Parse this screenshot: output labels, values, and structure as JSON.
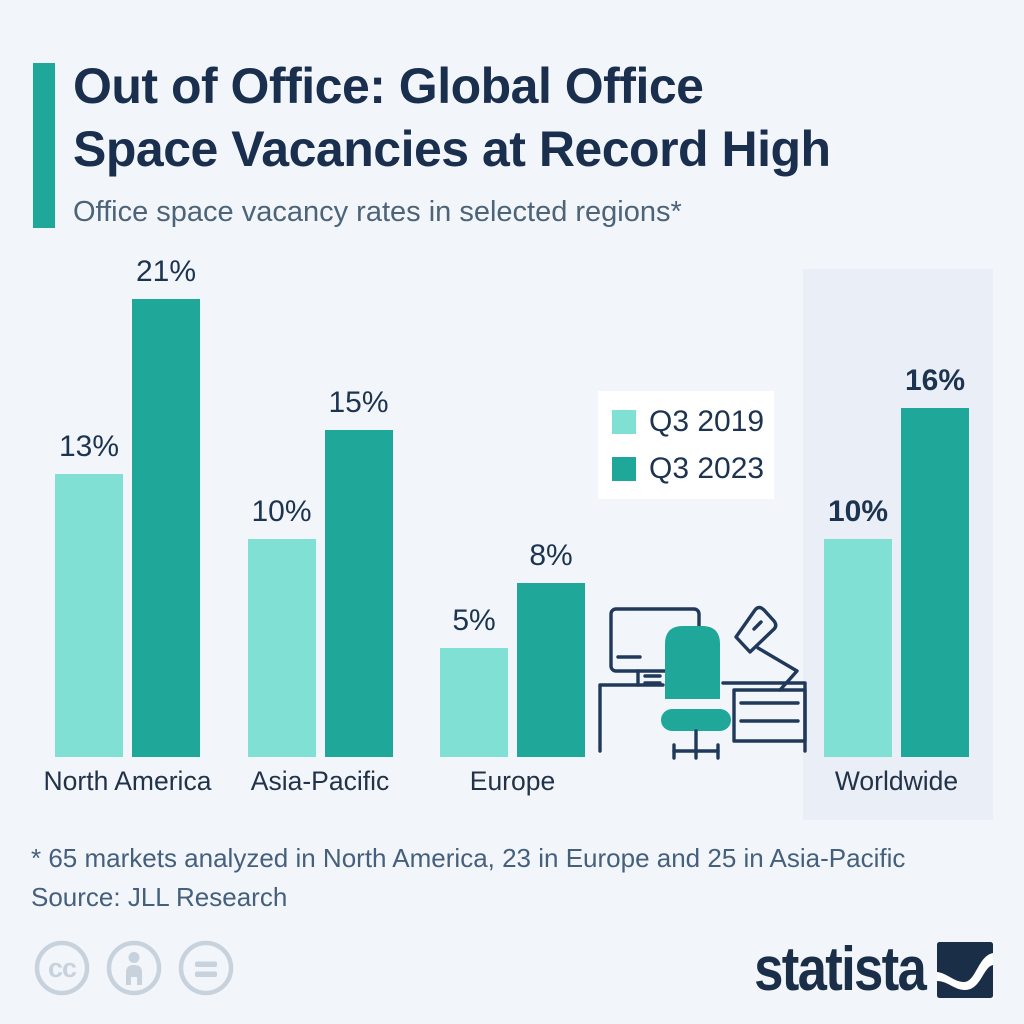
{
  "colors": {
    "background": "#f2f6fa",
    "accent_teal": "#1fa89a",
    "light_teal": "#7fe0d3",
    "title_navy": "#1a2f4d",
    "subtitle_gray": "#4c6378",
    "highlight_bg": "#eaeef6",
    "footnote_gray": "#45607d",
    "license_gray": "#c8d2dc",
    "logo_navy": "#1b2e48",
    "illustration_line": "#20395a"
  },
  "header": {
    "title": "Out of Office: Global Office Space Vacancies at Record High",
    "title_lines": [
      "Out of Office: Global Office",
      "Space Vacancies at Record High"
    ],
    "subtitle": "Office space vacancy rates in selected regions*"
  },
  "chart_data": {
    "type": "bar",
    "categories": [
      "North America",
      "Asia-Pacific",
      "Europe",
      "Worldwide"
    ],
    "series": [
      {
        "name": "Q3 2019",
        "color": "#7fe0d3",
        "values": [
          13,
          10,
          5,
          10
        ]
      },
      {
        "name": "Q3 2023",
        "color": "#1fa89a",
        "values": [
          21,
          15,
          8,
          16
        ]
      }
    ],
    "unit": "%",
    "value_labels": true,
    "highlighted_category": "Worldwide",
    "legend_position": "center-right",
    "xlabel": "",
    "ylabel": "",
    "ylim": [
      0,
      22
    ],
    "grid": false
  },
  "footnote": "* 65 markets analyzed in North America, 23 in Europe and 25 in Asia-Pacific",
  "source": "Source: JLL Research",
  "branding": {
    "logo_text": "statista"
  },
  "license": {
    "icons": [
      "cc-icon",
      "attribution-icon",
      "no-derivatives-icon"
    ]
  }
}
